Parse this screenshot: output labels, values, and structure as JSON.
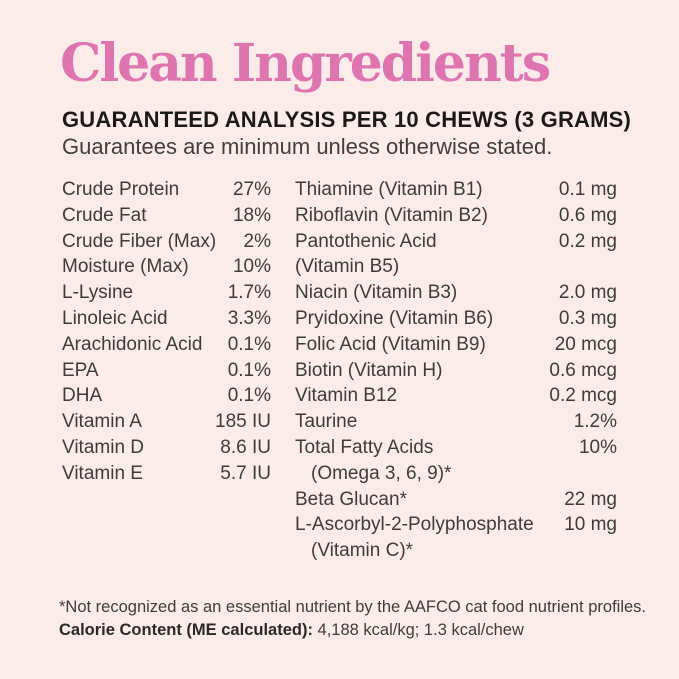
{
  "page": {
    "title": "Clean Ingredients",
    "heading": "GUARANTEED ANALYSIS PER 10 CHEWS (3 GRAMS)",
    "subheading": "Guarantees are minimum unless otherwise stated."
  },
  "colors": {
    "background": "#fbecea",
    "title_pink": "#de74b0",
    "heading_text": "#1b1a19",
    "body_text": "#3e3c3b"
  },
  "analysis_table": {
    "left_column": [
      {
        "label": "Crude Protein",
        "value": "27%"
      },
      {
        "label": "Crude Fat",
        "value": "18%"
      },
      {
        "label": "Crude Fiber (Max)",
        "value": "2%"
      },
      {
        "label": "Moisture (Max)",
        "value": "10%"
      },
      {
        "label": "L-Lysine",
        "value": "1.7%"
      },
      {
        "label": "Linoleic Acid",
        "value": "3.3%"
      },
      {
        "label": "Arachidonic Acid",
        "value": "0.1%"
      },
      {
        "label": "EPA",
        "value": "0.1%"
      },
      {
        "label": "DHA",
        "value": "0.1%"
      },
      {
        "label": "Vitamin A",
        "value": "185 IU"
      },
      {
        "label": "Vitamin D",
        "value": "8.6 IU"
      },
      {
        "label": "Vitamin E",
        "value": "5.7 IU"
      }
    ],
    "right_column": [
      {
        "label": "Thiamine (Vitamin B1)",
        "value": "0.1 mg"
      },
      {
        "label": "Riboflavin (Vitamin B2)",
        "value": "0.6 mg"
      },
      {
        "label": "Pantothenic Acid",
        "value": "0.2 mg"
      },
      {
        "label": "(Vitamin B5)",
        "value": ""
      },
      {
        "label": "Niacin (Vitamin B3)",
        "value": "2.0 mg"
      },
      {
        "label": "Pryidoxine (Vitamin B6)",
        "value": "0.3 mg"
      },
      {
        "label": "Folic Acid (Vitamin B9)",
        "value": "20 mcg"
      },
      {
        "label": "Biotin (Vitamin H)",
        "value": "0.6 mcg"
      },
      {
        "label": "Vitamin B12",
        "value": "0.2 mcg"
      },
      {
        "label": "Taurine",
        "value": "1.2%"
      },
      {
        "label": "Total Fatty Acids",
        "value": "10%"
      },
      {
        "label": "(Omega 3, 6, 9)*",
        "value": ""
      },
      {
        "label": "Beta Glucan*",
        "value": "22 mg"
      },
      {
        "label": "L-Ascorbyl-2-Polyphosphate",
        "value": "10 mg"
      },
      {
        "label": "(Vitamin C)*",
        "value": ""
      }
    ]
  },
  "footnotes": {
    "asterisk_note": "*Not recognized as an essential nutrient by the AAFCO cat food nutrient profiles.",
    "calorie_label": "Calorie Content (ME calculated):",
    "calorie_value": " 4,188 kcal/kg; 1.3 kcal/chew"
  }
}
